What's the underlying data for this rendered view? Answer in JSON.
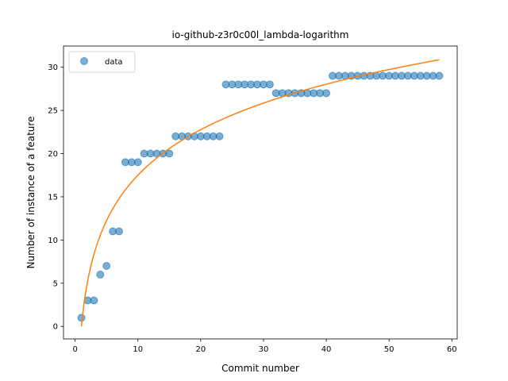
{
  "chart_data": {
    "type": "scatter",
    "title": "io-github-z3r0c00l_lambda-logarithm",
    "xlabel": "Commit number",
    "ylabel": "Number of instance of a feature",
    "xlim": [
      -1.85,
      60.85
    ],
    "ylim": [
      -1.45,
      32.45
    ],
    "xticks": [
      0,
      10,
      20,
      30,
      40,
      50,
      60
    ],
    "yticks": [
      0,
      5,
      10,
      15,
      20,
      25,
      30
    ],
    "grid": false,
    "legend_position": "top-left",
    "series": [
      {
        "name": "data",
        "kind": "points",
        "color": "#1f77b4",
        "x": [
          1,
          2,
          3,
          4,
          5,
          6,
          7,
          8,
          9,
          10,
          11,
          12,
          13,
          14,
          15,
          16,
          17,
          18,
          19,
          20,
          21,
          22,
          23,
          24,
          25,
          26,
          27,
          28,
          29,
          30,
          31,
          32,
          33,
          34,
          35,
          36,
          37,
          38,
          39,
          40,
          41,
          42,
          43,
          44,
          45,
          46,
          47,
          48,
          49,
          50,
          51,
          52,
          53,
          54,
          55,
          56,
          57,
          58
        ],
        "y": [
          1,
          3,
          3,
          6,
          7,
          11,
          11,
          19,
          19,
          19,
          20,
          20,
          20,
          20,
          20,
          22,
          22,
          22,
          22,
          22,
          22,
          22,
          22,
          28,
          28,
          28,
          28,
          28,
          28,
          28,
          28,
          27,
          27,
          27,
          27,
          27,
          27,
          27,
          27,
          27,
          29,
          29,
          29,
          29,
          29,
          29,
          29,
          29,
          29,
          29,
          29,
          29,
          29,
          29,
          29,
          29,
          29,
          29
        ]
      },
      {
        "kind": "fitted-curve",
        "color": "#ff7f0e",
        "model": "logarithmic",
        "a": 0.0,
        "b": 7.6
      }
    ]
  }
}
